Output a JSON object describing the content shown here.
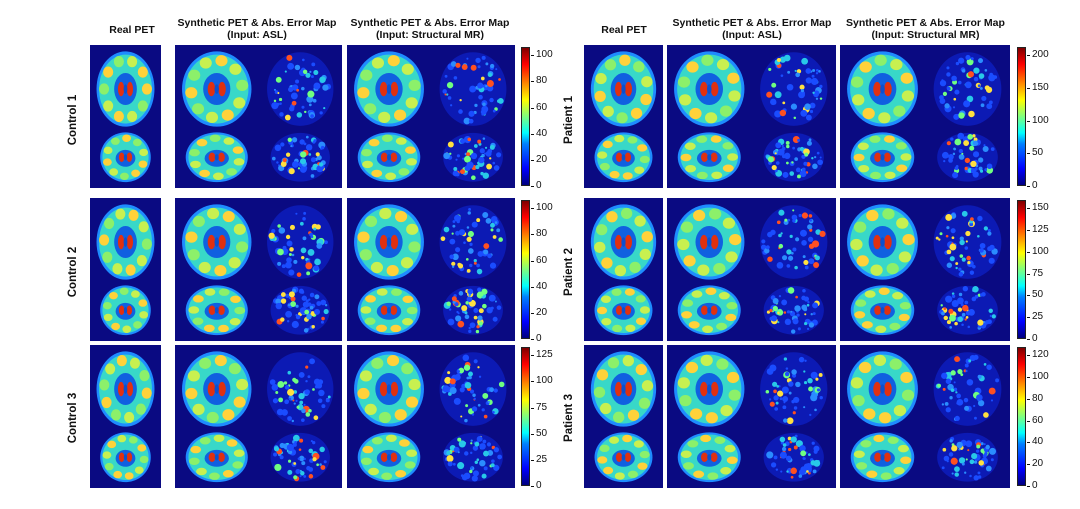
{
  "headers": {
    "real_pet": "Real PET",
    "syn_asl_line1": "Synthetic PET & Abs. Error Map",
    "syn_asl_line2": "(Input: ASL)",
    "syn_mr_line1": "Synthetic PET & Abs. Error Map",
    "syn_mr_line2": "(Input: Structural MR)"
  },
  "rows": {
    "left": [
      "Control 1",
      "Control 2",
      "Control 3"
    ],
    "right": [
      "Patient 1",
      "Patient 2",
      "Patient 3"
    ]
  },
  "colorbars": {
    "left": [
      [
        "100",
        "80",
        "60",
        "40",
        "20",
        "0"
      ],
      [
        "100",
        "80",
        "60",
        "40",
        "20",
        "0"
      ],
      [
        "125",
        "100",
        "75",
        "50",
        "25",
        "0"
      ]
    ],
    "right": [
      [
        "200",
        "150",
        "100",
        "50",
        "0"
      ],
      [
        "150",
        "125",
        "100",
        "75",
        "50",
        "25",
        "0"
      ],
      [
        "120",
        "100",
        "80",
        "60",
        "40",
        "20",
        "0"
      ]
    ]
  },
  "colors": {
    "background": "#0a0a82",
    "jet_low": "#00007f",
    "jet_mid": "#7fff7f",
    "jet_high": "#7f0000"
  }
}
